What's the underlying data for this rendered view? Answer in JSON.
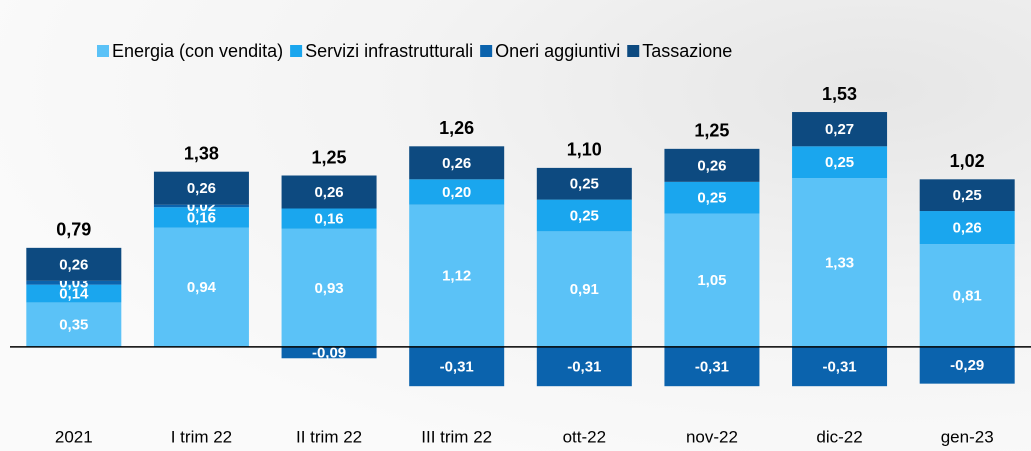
{
  "chart_data": {
    "type": "stacked_bar",
    "categories": [
      "2021",
      "I trim 22",
      "II trim 22",
      "III trim 22",
      "ott-22",
      "nov-22",
      "dic-22",
      "gen-23"
    ],
    "series": [
      {
        "name": "Energia (con vendita)",
        "color": "#5bc2f7",
        "values": [
          0.35,
          0.94,
          0.93,
          1.12,
          0.91,
          1.05,
          1.33,
          0.81
        ],
        "value_labels": [
          "0,35",
          "0,94",
          "0,93",
          "1,12",
          "0,91",
          "1,05",
          "1,33",
          "0,81"
        ]
      },
      {
        "name": "Servizi infrastrutturali",
        "color": "#1aa6ee",
        "values": [
          0.14,
          0.16,
          0.16,
          0.2,
          0.25,
          0.25,
          0.25,
          0.26
        ],
        "value_labels": [
          "0,14",
          "0,16",
          "0,16",
          "0,20",
          "0,25",
          "0,25",
          "0,25",
          "0,26"
        ]
      },
      {
        "name": "Oneri aggiuntivi",
        "color": "#0b63ad",
        "values": [
          0.03,
          0.02,
          -0.09,
          -0.31,
          -0.31,
          -0.31,
          -0.31,
          -0.29
        ],
        "value_labels": [
          "0,03",
          "0,02",
          "-0,09",
          "-0,31",
          "-0,31",
          "-0,31",
          "-0,31",
          "-0,29"
        ]
      },
      {
        "name": "Tassazione",
        "color": "#0d4a80",
        "values": [
          0.26,
          0.26,
          0.26,
          0.26,
          0.25,
          0.26,
          0.27,
          0.25
        ],
        "value_labels": [
          "0,26",
          "0,26",
          "0,26",
          "0,26",
          "0,25",
          "0,26",
          "0,27",
          "0,25"
        ]
      }
    ],
    "totals": {
      "values": [
        0.79,
        1.38,
        1.25,
        1.26,
        1.1,
        1.25,
        1.53,
        1.02
      ],
      "value_labels": [
        "0,79",
        "1,38",
        "1,25",
        "1,26",
        "1,10",
        "1,25",
        "1,53",
        "1,02"
      ]
    },
    "ylim": [
      -0.6,
      2.0
    ]
  }
}
